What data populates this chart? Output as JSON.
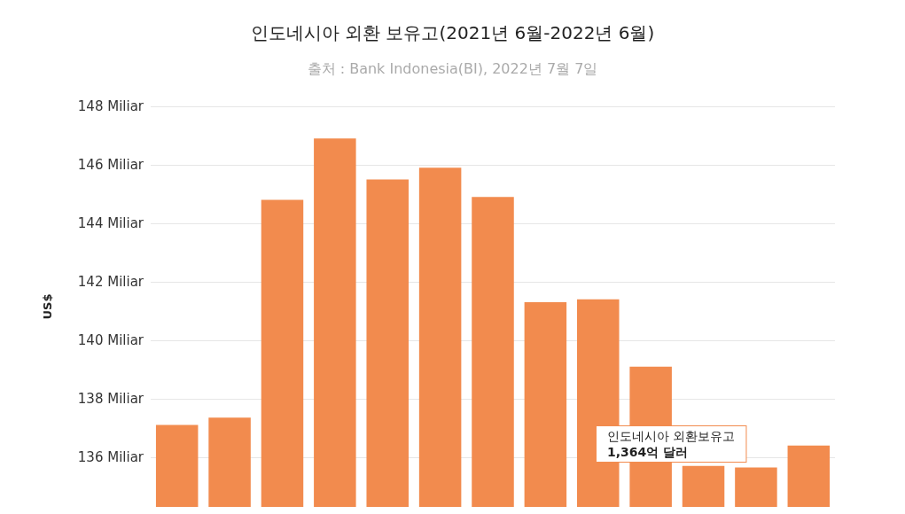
{
  "chart_data": {
    "type": "bar",
    "title": "인도네시아 외환 보유고(2021년 6월-2022년 6월)",
    "subtitle": "출처 : Bank Indonesia(BI), 2022년 7월 7일",
    "ylabel": "US$",
    "categories": [
      null,
      null,
      null,
      null,
      null,
      null,
      null,
      null,
      null,
      null,
      null,
      null,
      null
    ],
    "values": [
      137.1,
      137.35,
      144.8,
      146.9,
      145.5,
      145.9,
      144.9,
      141.3,
      141.4,
      139.1,
      135.7,
      135.65,
      136.4
    ],
    "color": "#f28b4e",
    "ylim": [
      134.3,
      148
    ],
    "yticks": [
      {
        "value": 136,
        "label": "136 Miliar"
      },
      {
        "value": 138,
        "label": "138 Miliar"
      },
      {
        "value": 140,
        "label": "140 Miliar"
      },
      {
        "value": 142,
        "label": "142 Miliar"
      },
      {
        "value": 144,
        "label": "144 Miliar"
      },
      {
        "value": 146,
        "label": "146 Miliar"
      },
      {
        "value": 148,
        "label": "148 Miliar"
      }
    ],
    "grid": "y",
    "annotations": [
      "인도네시아 외환보유고\n1,364억 달러"
    ]
  }
}
